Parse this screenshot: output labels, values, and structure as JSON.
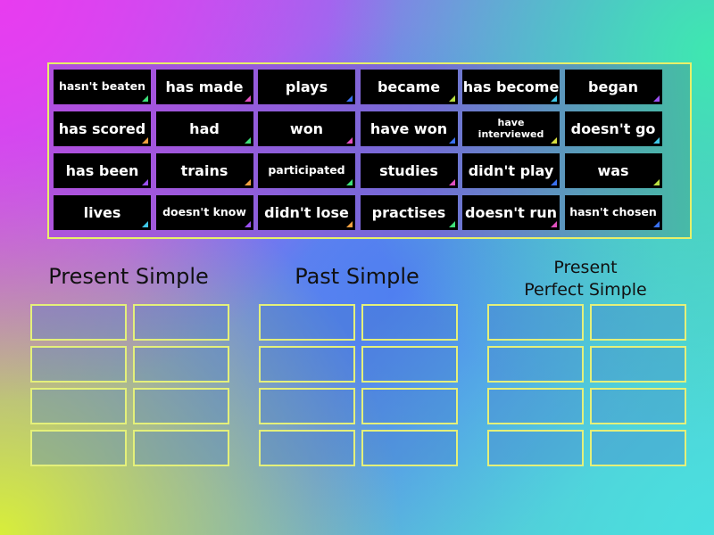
{
  "tiles": [
    {
      "label": "hasn't beaten",
      "corner": "#3ee07a"
    },
    {
      "label": "has made",
      "corner": "#e050c0"
    },
    {
      "label": "plays",
      "corner": "#3a70f0"
    },
    {
      "label": "became",
      "corner": "#b8e040"
    },
    {
      "label": "has become",
      "corner": "#40c8e8"
    },
    {
      "label": "began",
      "corner": "#9a50f0"
    },
    {
      "label": "has scored",
      "corner": "#f0a040"
    },
    {
      "label": "had",
      "corner": "#3ee07a"
    },
    {
      "label": "won",
      "corner": "#e050c0"
    },
    {
      "label": "have won",
      "corner": "#3a70f0"
    },
    {
      "label": "have interviewed",
      "corner": "#d8e040"
    },
    {
      "label": "doesn't go",
      "corner": "#40c8e8"
    },
    {
      "label": "has been",
      "corner": "#9a50f0"
    },
    {
      "label": "trains",
      "corner": "#f0a040"
    },
    {
      "label": "participated",
      "corner": "#3ee07a"
    },
    {
      "label": "studies",
      "corner": "#e050c0"
    },
    {
      "label": "didn't play",
      "corner": "#3a70f0"
    },
    {
      "label": "was",
      "corner": "#b8e040"
    },
    {
      "label": "lives",
      "corner": "#40c8e8"
    },
    {
      "label": "doesn't know",
      "corner": "#9a50f0"
    },
    {
      "label": "didn't lose",
      "corner": "#f0a040"
    },
    {
      "label": "practises",
      "corner": "#3ee07a"
    },
    {
      "label": "doesn't run",
      "corner": "#e050c0"
    },
    {
      "label": "hasn't chosen",
      "corner": "#3a70f0"
    }
  ],
  "groups": [
    {
      "line1": "Present Simple",
      "line2": ""
    },
    {
      "line1": "Past Simple",
      "line2": ""
    },
    {
      "line1": "Present",
      "line2": "Perfect Simple"
    }
  ]
}
